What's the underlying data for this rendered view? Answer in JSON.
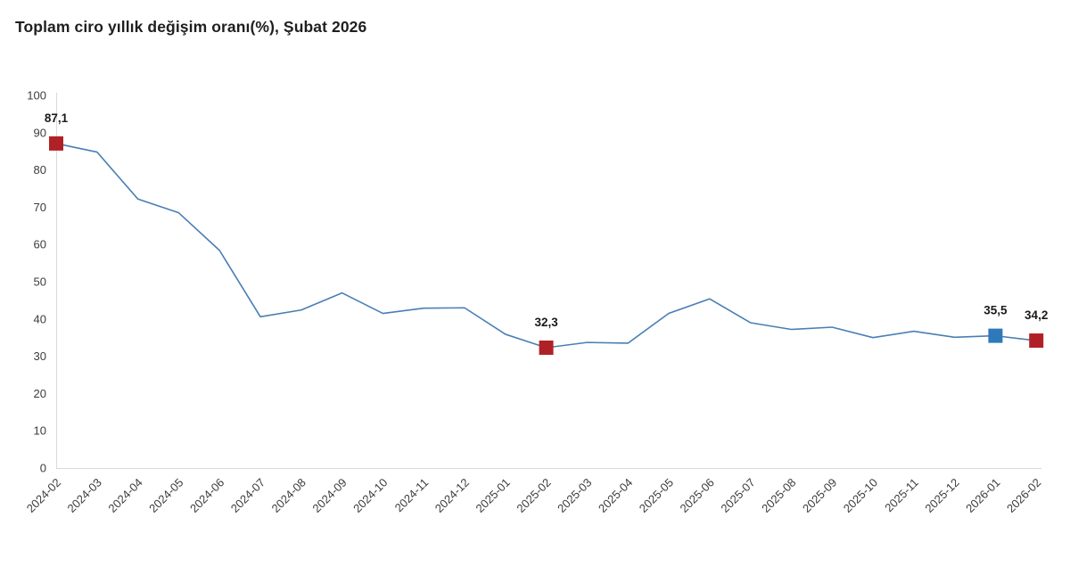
{
  "page": {
    "background": "#ffffff"
  },
  "chart_data": {
    "type": "line",
    "title": "Toplam ciro yıllık değişim oranı(%), Şubat 2026",
    "categories": [
      "2024-02",
      "2024-03",
      "2024-04",
      "2024-05",
      "2024-06",
      "2024-07",
      "2024-08",
      "2024-09",
      "2024-10",
      "2024-11",
      "2024-12",
      "2025-01",
      "2025-02",
      "2025-03",
      "2025-04",
      "2025-05",
      "2025-06",
      "2025-07",
      "2025-08",
      "2025-09",
      "2025-10",
      "2025-11",
      "2025-12",
      "2026-01",
      "2026-02"
    ],
    "values": [
      87.1,
      84.8,
      72.2,
      68.5,
      58.4,
      40.6,
      42.4,
      47.0,
      41.5,
      42.9,
      43.0,
      35.9,
      32.3,
      33.7,
      33.5,
      41.5,
      45.4,
      39.0,
      37.2,
      37.8,
      35.0,
      36.7,
      35.1,
      35.5,
      34.2
    ],
    "marked_points": [
      {
        "index": 0,
        "label": "87,1",
        "color": "#b02126"
      },
      {
        "index": 12,
        "label": "32,3",
        "color": "#b02126"
      },
      {
        "index": 23,
        "label": "35,5",
        "color": "#2e79b9"
      },
      {
        "index": 24,
        "label": "34,2",
        "color": "#b02126"
      }
    ],
    "xlabel": "",
    "ylabel": "",
    "ylim": [
      0,
      100
    ],
    "y_ticks": [
      0,
      10,
      20,
      30,
      40,
      50,
      60,
      70,
      80,
      90,
      100
    ],
    "grid": false,
    "legend": "none",
    "colors": {
      "line": "#4a7eb5",
      "axis_line": "#d9d9d9",
      "tick_label": "#3c3c3c",
      "point_label": "#1a1a1a",
      "title": "#1f1f1f"
    }
  }
}
